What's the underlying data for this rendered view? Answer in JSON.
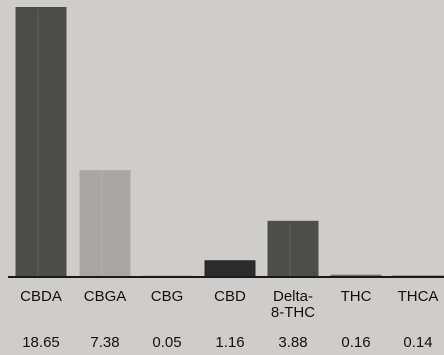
{
  "chart_data": {
    "type": "bar",
    "categories": [
      "CBDA",
      "CBGA",
      "CBG",
      "CBD",
      "Delta-8-THC",
      "THC",
      "THCA"
    ],
    "category_lines": [
      [
        "CBDA"
      ],
      [
        "CBGA"
      ],
      [
        "CBG"
      ],
      [
        "CBD"
      ],
      [
        "Delta-",
        "8-THC"
      ],
      [
        "THC"
      ],
      [
        "THCA"
      ]
    ],
    "values": [
      18.65,
      7.38,
      0.05,
      1.16,
      3.88,
      0.16,
      0.14
    ],
    "value_labels": [
      "18.65",
      "7.38",
      "0.05",
      "1.16",
      "3.88",
      "0.16",
      "0.14"
    ],
    "bar_colors": [
      "#4c4c4b",
      "#a8a7a5",
      "#a3a2a0",
      "#2b2b2b",
      "#4d4d4c",
      "#6e6d6c",
      "#9c9b99"
    ],
    "title": "",
    "xlabel": "",
    "ylabel": "",
    "ylim": [
      0,
      18.65
    ],
    "grid": false,
    "legend": "none",
    "colors": {
      "background": "#cecdcb",
      "axis": "#1a1a1a",
      "text": "#111111"
    }
  }
}
